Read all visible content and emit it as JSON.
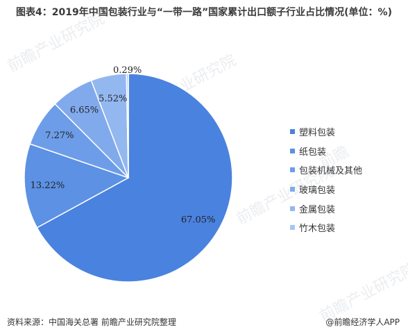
{
  "title": "图表4：2019年中国包装行业与“一带一路”国家累计出口额子行业占比情况(单位：%)",
  "source": "资料来源：中国海关总署 前瞻产业研究院整理",
  "credit": "@前瞻经济学人APP",
  "chart_data": {
    "type": "pie",
    "title": "图表4：2019年中国包装行业与“一带一路”国家累计出口额子行业占比情况(单位：%)",
    "categories": [
      "塑料包装",
      "纸包装",
      "包装机械及其他",
      "玻璃包装",
      "金属包装",
      "竹木包装"
    ],
    "values": [
      67.05,
      13.22,
      7.27,
      6.65,
      5.52,
      0.29
    ],
    "labels": [
      "67.05%",
      "13.22%",
      "7.27%",
      "6.65%",
      "5.52%",
      "0.29%"
    ],
    "colors": [
      "#4a82df",
      "#5c91e4",
      "#6d9de8",
      "#80aaec",
      "#93b8f0",
      "#a8c6f4"
    ],
    "legend_position": "right"
  }
}
